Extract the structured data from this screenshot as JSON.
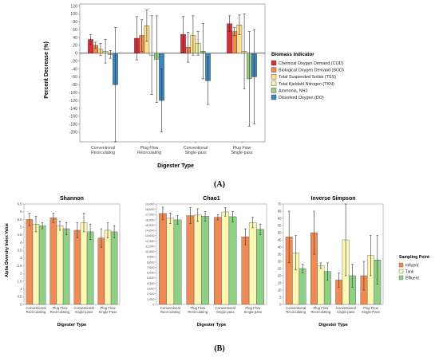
{
  "figure": {
    "panel_a_label": "(A)",
    "panel_b_label": "(B)"
  },
  "colors": {
    "COD": "#d62f3a",
    "BOD": "#f08a55",
    "TSS": "#fde08a",
    "TKN": "#f3f7b0",
    "NH3": "#9ccf8c",
    "DO": "#3a86c0",
    "Influent": "#f08a55",
    "Tank": "#fbf7b4",
    "Effluent": "#8fcf86"
  },
  "chart_data": [
    {
      "type": "bar",
      "panel": "A",
      "title": "",
      "xlabel": "Digester Type",
      "ylabel": "Percent Decrease (%)",
      "ylim": [
        -225,
        125
      ],
      "yticks": [
        120,
        100,
        80,
        60,
        40,
        20,
        0,
        -20,
        -40,
        -60,
        -80,
        -100,
        -120,
        -140,
        -160,
        -180,
        -200
      ],
      "grid": false,
      "legend_title": "Biomass Indicator",
      "legend_position": "right",
      "categories": [
        "Conventional\nRecirculating",
        "Plug Flow\nRecirculating",
        "Conventional\nSingle-pass",
        "Plug Flow\nSingle-pass"
      ],
      "series": [
        {
          "name": "Chemical Oxygen Demand (COD)",
          "key": "COD",
          "values": [
            35,
            38,
            48,
            75
          ],
          "errors": [
            12,
            55,
            45,
            20
          ]
        },
        {
          "name": "Biological Oxygen Demand (BOD)",
          "key": "BOD",
          "values": [
            20,
            45,
            15,
            55
          ],
          "errors": [
            8,
            40,
            38,
            10
          ]
        },
        {
          "name": "Total Suspended Solids (TSS)",
          "key": "TSS",
          "values": [
            10,
            70,
            45,
            72
          ],
          "errors": [
            15,
            40,
            50,
            25
          ]
        },
        {
          "name": "Total Kjeldahl Nitrogen (TKN)",
          "key": "TKN",
          "values": [
            5,
            -5,
            25,
            5
          ],
          "errors": [
            30,
            100,
            30,
            95
          ]
        },
        {
          "name": "Ammonia, NH3",
          "key": "NH3",
          "values": [
            -3,
            -15,
            5,
            -65
          ],
          "errors": [
            10,
            110,
            70,
            120
          ]
        },
        {
          "name": "Dissolved Oxygen (DO)",
          "key": "DO",
          "values": [
            -80,
            -120,
            -70,
            -60
          ],
          "errors": [
            145,
            80,
            60,
            120
          ]
        }
      ]
    },
    {
      "type": "bar",
      "panel": "B1",
      "title": "Shannon",
      "xlabel": "Digester Type",
      "ylabel": "Alpha Diversity Index Value",
      "ylim": [
        0,
        6.5
      ],
      "yticks": [
        "0",
        "0.5",
        "1",
        "1.5",
        "2",
        "2.5",
        "3",
        "3.5",
        "4",
        "4.5",
        "5",
        "5.5",
        "6",
        "6.5"
      ],
      "categories": [
        "Conventional\nRecirculating",
        "Plug Flow\nRecirculating",
        "Conventional\nSingle-pass",
        "Plug Flow\nSingle-Pass"
      ],
      "series": [
        {
          "name": "Influent",
          "key": "Influent",
          "values": [
            5.5,
            5.6,
            4.8,
            4.3
          ],
          "errors": [
            0.4,
            0.3,
            0.5,
            0.6
          ]
        },
        {
          "name": "Tank",
          "key": "Tank",
          "values": [
            5.2,
            5.1,
            5.3,
            4.8
          ],
          "errors": [
            0.5,
            0.3,
            0.6,
            0.5
          ]
        },
        {
          "name": "Effluent",
          "key": "Effluent",
          "values": [
            5.1,
            4.9,
            4.7,
            4.7
          ],
          "errors": [
            0.2,
            0.4,
            0.5,
            0.4
          ]
        }
      ]
    },
    {
      "type": "bar",
      "panel": "B2",
      "title": "Chao1",
      "xlabel": "Digester Type",
      "ylabel": "",
      "ylim": [
        0,
        19000
      ],
      "yticks": [
        "0",
        "1,000",
        "2,000",
        "3,000",
        "4,000",
        "5,000",
        "6,000",
        "7,000",
        "8,000",
        "9,000",
        "10,000",
        "11,000",
        "12,000",
        "13,000",
        "14,000",
        "15,000",
        "16,000",
        "17,000",
        "18,000",
        "19,000"
      ],
      "categories": [
        "Conventional\nRecirculating",
        "Plug Flow\nRecirculating",
        "Conventional\nSingle-pass",
        "Plug Flow\nSingle-pass"
      ],
      "series": [
        {
          "name": "Influent",
          "key": "Influent",
          "values": [
            17200,
            16800,
            16500,
            12800
          ],
          "errors": [
            1200,
            1500,
            500,
            1500
          ]
        },
        {
          "name": "Tank",
          "key": "Tank",
          "values": [
            16300,
            16900,
            17500,
            15500
          ],
          "errors": [
            1000,
            1200,
            800,
            1000
          ]
        },
        {
          "name": "Effluent",
          "key": "Effluent",
          "values": [
            16000,
            16700,
            16600,
            14200
          ],
          "errors": [
            800,
            900,
            1000,
            1000
          ]
        }
      ]
    },
    {
      "type": "bar",
      "panel": "B3",
      "title": "Inverse Simpson",
      "xlabel": "Digester Type",
      "ylabel": "",
      "ylim": [
        0,
        70
      ],
      "yticks": [
        "0",
        "5",
        "10",
        "15",
        "20",
        "25",
        "30",
        "35",
        "40",
        "45",
        "50",
        "55",
        "60",
        "65",
        "70"
      ],
      "legend_title": "Sampling Point",
      "legend_position": "right",
      "categories": [
        "Conventional\nRecirculating",
        "Plug Flow\nRecirculating",
        "Conventional\nSingle-pass",
        "Plug Flow\nSingle-Pass"
      ],
      "series": [
        {
          "name": "Influent",
          "key": "Influent",
          "values": [
            47,
            50,
            17,
            20
          ],
          "errors": [
            18,
            15,
            5,
            10
          ]
        },
        {
          "name": "Tank",
          "key": "Tank",
          "values": [
            36,
            27,
            45,
            34
          ],
          "errors": [
            12,
            2,
            25,
            14
          ]
        },
        {
          "name": "Effluent",
          "key": "Effluent",
          "values": [
            25,
            23,
            20,
            31
          ],
          "errors": [
            3,
            6,
            8,
            17
          ]
        }
      ]
    }
  ]
}
